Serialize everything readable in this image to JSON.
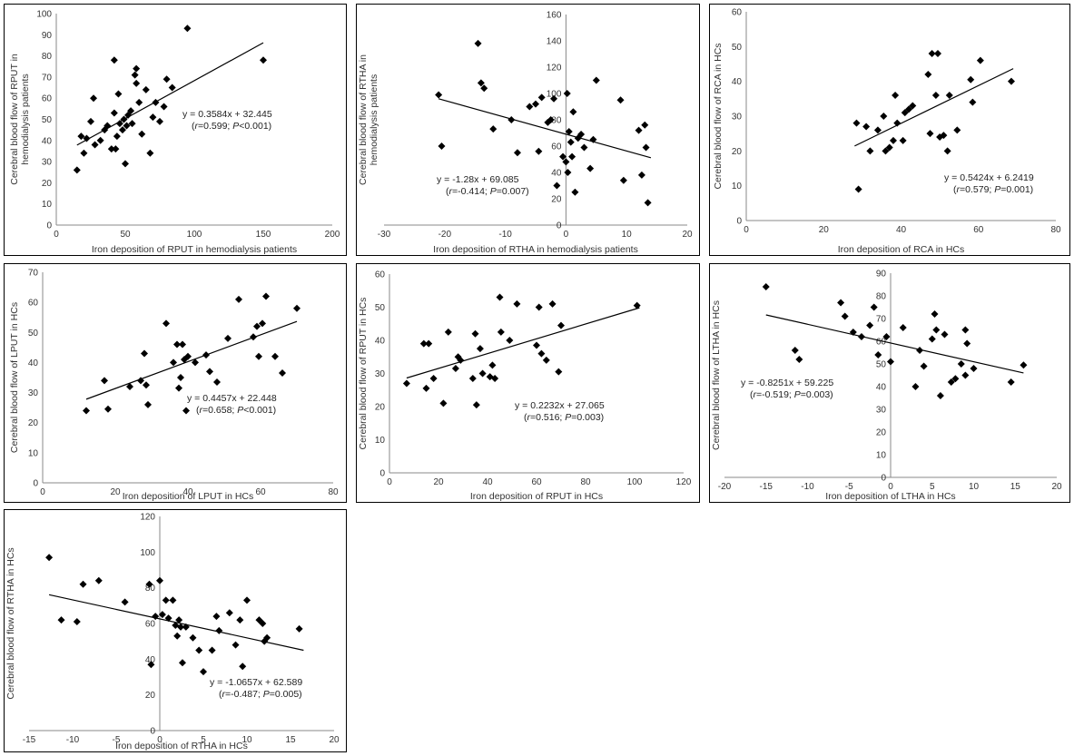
{
  "chart_data": [
    {
      "type": "scatter",
      "xlabel": "Iron deposition of RPUT in hemodialysis patients",
      "ylabel_lines": [
        "Cerebral  blood flow of RPUT in",
        "hemodialysis patients"
      ],
      "xlim": [
        0,
        200
      ],
      "ylim": [
        0,
        100
      ],
      "xstep": 50,
      "ystep": 10,
      "trend": {
        "slope": 0.3584,
        "intercept": 32.445,
        "x_from": 15,
        "x_to": 150
      },
      "equation": "y = 0.3584x + 32.445",
      "stats": {
        "open": "(",
        "r": "r",
        "r_val": "=0.599; ",
        "p": "P",
        "p_val": "<0.001)"
      },
      "points": [
        [
          15,
          26
        ],
        [
          18,
          42
        ],
        [
          20,
          34
        ],
        [
          22,
          41
        ],
        [
          25,
          49
        ],
        [
          27,
          60
        ],
        [
          28,
          38
        ],
        [
          32,
          40
        ],
        [
          35,
          45
        ],
        [
          37,
          47
        ],
        [
          40,
          36
        ],
        [
          42,
          78
        ],
        [
          42,
          53
        ],
        [
          43,
          36
        ],
        [
          44,
          42
        ],
        [
          45,
          62
        ],
        [
          46,
          48
        ],
        [
          48,
          45
        ],
        [
          49,
          50
        ],
        [
          50,
          29
        ],
        [
          51,
          47
        ],
        [
          52,
          52
        ],
        [
          54,
          54
        ],
        [
          55,
          48
        ],
        [
          57,
          71
        ],
        [
          58,
          74
        ],
        [
          58,
          67
        ],
        [
          60,
          58
        ],
        [
          62,
          43
        ],
        [
          65,
          64
        ],
        [
          68,
          34
        ],
        [
          70,
          51
        ],
        [
          72,
          58
        ],
        [
          75,
          49
        ],
        [
          78,
          56
        ],
        [
          80,
          69
        ],
        [
          84,
          65
        ],
        [
          95,
          93
        ],
        [
          150,
          78
        ]
      ]
    },
    {
      "type": "scatter",
      "xlabel": "Iron deposition of RTHA in hemodialysis patients",
      "ylabel_lines": [
        "Cerebral blood flow of RTHA in",
        "hemodialysis patients"
      ],
      "xlim": [
        -30,
        20
      ],
      "ylim": [
        0,
        160
      ],
      "xstep": 10,
      "ystep": 20,
      "trend": {
        "slope": -1.28,
        "intercept": 69.085,
        "x_from": -21,
        "x_to": 14
      },
      "equation": "y = -1.28x + 69.085",
      "stats": {
        "open": "(",
        "r": "r",
        "r_val": "=-0.414; ",
        "p": "P",
        "p_val": "=0.007)"
      },
      "points": [
        [
          -21,
          99
        ],
        [
          -20.5,
          60
        ],
        [
          -14.5,
          138
        ],
        [
          -14,
          108
        ],
        [
          -13.5,
          104
        ],
        [
          -12,
          73
        ],
        [
          -9,
          80
        ],
        [
          -8,
          55
        ],
        [
          -6,
          90
        ],
        [
          -5,
          92
        ],
        [
          -4.5,
          56
        ],
        [
          -4,
          97
        ],
        [
          -3,
          78
        ],
        [
          -2.5,
          80
        ],
        [
          -2,
          96
        ],
        [
          -1.5,
          30
        ],
        [
          -0.5,
          52
        ],
        [
          0,
          48
        ],
        [
          0.2,
          100
        ],
        [
          0.3,
          40
        ],
        [
          0.5,
          71
        ],
        [
          0.8,
          63
        ],
        [
          1,
          52
        ],
        [
          1.2,
          86
        ],
        [
          1.5,
          25
        ],
        [
          2,
          66
        ],
        [
          2.5,
          69
        ],
        [
          3,
          59
        ],
        [
          4,
          43
        ],
        [
          4.5,
          65
        ],
        [
          5,
          110
        ],
        [
          9,
          95
        ],
        [
          9.5,
          34
        ],
        [
          12,
          72
        ],
        [
          12.5,
          38
        ],
        [
          13,
          76
        ],
        [
          13.2,
          59
        ],
        [
          13.5,
          17
        ]
      ]
    },
    {
      "type": "scatter",
      "xlabel": "Iron deposition of RCA in HCs",
      "ylabel_lines": [
        "Cerebral blood flow of RCA in HCs"
      ],
      "xlim": [
        0,
        80
      ],
      "ylim": [
        0,
        60
      ],
      "xstep": 20,
      "ystep": 10,
      "trend": {
        "slope": 0.5424,
        "intercept": 6.2419,
        "x_from": 28,
        "x_to": 69
      },
      "equation": "y = 0.5424x + 6.2419",
      "stats": {
        "open": "(",
        "r": "r",
        "r_val": "=0.579; ",
        "p": "P",
        "p_val": "=0.001)"
      },
      "points": [
        [
          28.5,
          28
        ],
        [
          29,
          9
        ],
        [
          31,
          27
        ],
        [
          32,
          20
        ],
        [
          34,
          26
        ],
        [
          35.5,
          30
        ],
        [
          36,
          20
        ],
        [
          37,
          21
        ],
        [
          38,
          23
        ],
        [
          38.5,
          36
        ],
        [
          39,
          28
        ],
        [
          40.5,
          23
        ],
        [
          41,
          31
        ],
        [
          42,
          32
        ],
        [
          43,
          33
        ],
        [
          47,
          42
        ],
        [
          47.5,
          25
        ],
        [
          48,
          48
        ],
        [
          49,
          36
        ],
        [
          49.5,
          48
        ],
        [
          50,
          24
        ],
        [
          51,
          24.5
        ],
        [
          52,
          20
        ],
        [
          52.5,
          36
        ],
        [
          54.5,
          26
        ],
        [
          58,
          40.5
        ],
        [
          58.5,
          34
        ],
        [
          60.5,
          46
        ],
        [
          68.5,
          40
        ]
      ]
    },
    {
      "type": "scatter",
      "xlabel": "Iron deposition of LPUT in HCs",
      "ylabel_lines": [
        "Cerebral blood flow of LPUT in HCs"
      ],
      "xlim": [
        0,
        80
      ],
      "ylim": [
        0,
        70
      ],
      "xstep": 20,
      "ystep": 10,
      "trend": {
        "slope": 0.4457,
        "intercept": 22.448,
        "x_from": 12,
        "x_to": 70
      },
      "equation": "y = 0.4457x + 22.448",
      "stats": {
        "open": "(",
        "r": "r",
        "r_val": "=0.658; ",
        "p": "P",
        "p_val": "<0.001)"
      },
      "points": [
        [
          12,
          24
        ],
        [
          17,
          34
        ],
        [
          18,
          24.5
        ],
        [
          24,
          32
        ],
        [
          27,
          34
        ],
        [
          28,
          43
        ],
        [
          28.5,
          32.5
        ],
        [
          29,
          26
        ],
        [
          34,
          53
        ],
        [
          36,
          40
        ],
        [
          37,
          46
        ],
        [
          37.5,
          31.5
        ],
        [
          38,
          35
        ],
        [
          38.5,
          46
        ],
        [
          39,
          41
        ],
        [
          39.5,
          24
        ],
        [
          40,
          42
        ],
        [
          42,
          40
        ],
        [
          45,
          42.5
        ],
        [
          46,
          37
        ],
        [
          48,
          33.5
        ],
        [
          51,
          48
        ],
        [
          54,
          61
        ],
        [
          58,
          48.5
        ],
        [
          59,
          52
        ],
        [
          59.5,
          42
        ],
        [
          60.5,
          53
        ],
        [
          61.5,
          62
        ],
        [
          64,
          42
        ],
        [
          66,
          36.5
        ],
        [
          70,
          58
        ]
      ]
    },
    {
      "type": "scatter",
      "xlabel": "Iron deposition of RPUT in HCs",
      "ylabel_lines": [
        "Cerebral blood flow of RPUT in HCs"
      ],
      "xlim": [
        0,
        120
      ],
      "ylim": [
        0,
        60
      ],
      "xstep": 20,
      "ystep": 10,
      "trend": {
        "slope": 0.2232,
        "intercept": 27.065,
        "x_from": 7,
        "x_to": 102
      },
      "equation": "y = 0.2232x + 27.065",
      "stats": {
        "open": "(",
        "r": "r",
        "r_val": "=0.516; ",
        "p": "P",
        "p_val": "=0.003)"
      },
      "points": [
        [
          7,
          27
        ],
        [
          14,
          39
        ],
        [
          15,
          25.5
        ],
        [
          16,
          39
        ],
        [
          18,
          28.5
        ],
        [
          22,
          21
        ],
        [
          24,
          42.5
        ],
        [
          27,
          31.5
        ],
        [
          28,
          35
        ],
        [
          29,
          34
        ],
        [
          34,
          28.5
        ],
        [
          35,
          42
        ],
        [
          35.5,
          20.5
        ],
        [
          37,
          37.5
        ],
        [
          38,
          30
        ],
        [
          41,
          29
        ],
        [
          42,
          32.5
        ],
        [
          43,
          28.5
        ],
        [
          45,
          53
        ],
        [
          45.5,
          42.5
        ],
        [
          49,
          40
        ],
        [
          52,
          51
        ],
        [
          60,
          38.5
        ],
        [
          61,
          50
        ],
        [
          62,
          36
        ],
        [
          64,
          34
        ],
        [
          66.5,
          51
        ],
        [
          69,
          30.5
        ],
        [
          70,
          44.5
        ],
        [
          101,
          50.5
        ]
      ]
    },
    {
      "type": "scatter",
      "xlabel": "Iron deposition of LTHA in HCs",
      "ylabel_lines": [
        "Cerebral blood flow of LTHA in HCs"
      ],
      "xlim": [
        -20,
        20
      ],
      "ylim": [
        0,
        90
      ],
      "xstep": 5,
      "ystep": 10,
      "trend": {
        "slope": -0.8251,
        "intercept": 59.225,
        "x_from": -15,
        "x_to": 16
      },
      "equation": "y = -0.8251x + 59.225",
      "stats": {
        "open": "(",
        "r": "r",
        "r_val": "=-0.519; ",
        "p": "P",
        "p_val": "=0.003)"
      },
      "points": [
        [
          -15,
          84
        ],
        [
          -11.5,
          56
        ],
        [
          -11,
          52
        ],
        [
          -6,
          77
        ],
        [
          -5.5,
          71
        ],
        [
          -4.5,
          64
        ],
        [
          -3.5,
          62
        ],
        [
          -2.5,
          67
        ],
        [
          -2,
          75
        ],
        [
          -1.5,
          54
        ],
        [
          -0.5,
          62
        ],
        [
          0,
          51
        ],
        [
          1.5,
          66
        ],
        [
          3,
          40
        ],
        [
          3.5,
          56
        ],
        [
          4,
          49
        ],
        [
          5,
          61
        ],
        [
          5.3,
          72
        ],
        [
          5.5,
          65
        ],
        [
          6,
          36
        ],
        [
          6.5,
          63
        ],
        [
          7.3,
          42
        ],
        [
          7.8,
          43.5
        ],
        [
          8.5,
          50
        ],
        [
          9,
          45
        ],
        [
          9,
          65
        ],
        [
          9.2,
          59
        ],
        [
          10,
          48
        ],
        [
          14.5,
          42
        ],
        [
          16,
          49.5
        ]
      ]
    },
    {
      "type": "scatter",
      "xlabel": "Iron deposition of RTHA in HCs",
      "ylabel_lines": [
        "Cerebral blood flow of RTHA in HCs"
      ],
      "xlim": [
        -15,
        20
      ],
      "ylim": [
        0,
        120
      ],
      "xstep": 5,
      "ystep": 20,
      "trend": {
        "slope": -1.0657,
        "intercept": 62.589,
        "x_from": -12.7,
        "x_to": 16.5
      },
      "equation": "y = -1.0657x + 62.589",
      "stats": {
        "open": "(",
        "r": "r",
        "r_val": "=-0.487; ",
        "p": "P",
        "p_val": "=0.005)"
      },
      "points": [
        [
          -12.7,
          97
        ],
        [
          -11.3,
          62
        ],
        [
          -9.5,
          61
        ],
        [
          -8.8,
          82
        ],
        [
          -7,
          84
        ],
        [
          -4,
          72
        ],
        [
          -1.2,
          82
        ],
        [
          -1,
          37
        ],
        [
          -0.5,
          64
        ],
        [
          0,
          84
        ],
        [
          0.3,
          65
        ],
        [
          0.7,
          73
        ],
        [
          1,
          63
        ],
        [
          1.5,
          73
        ],
        [
          1.8,
          59
        ],
        [
          2,
          53
        ],
        [
          2.2,
          62
        ],
        [
          2.4,
          58
        ],
        [
          2.6,
          38
        ],
        [
          3,
          58
        ],
        [
          3.8,
          52
        ],
        [
          4.5,
          45
        ],
        [
          5,
          33
        ],
        [
          6,
          45
        ],
        [
          6.5,
          64
        ],
        [
          6.8,
          56
        ],
        [
          8,
          66
        ],
        [
          8.7,
          48
        ],
        [
          9.2,
          62
        ],
        [
          9.5,
          36
        ],
        [
          10,
          73
        ],
        [
          11.4,
          62
        ],
        [
          11.8,
          60
        ],
        [
          12,
          50
        ],
        [
          12.3,
          52
        ],
        [
          16,
          57
        ]
      ]
    }
  ]
}
